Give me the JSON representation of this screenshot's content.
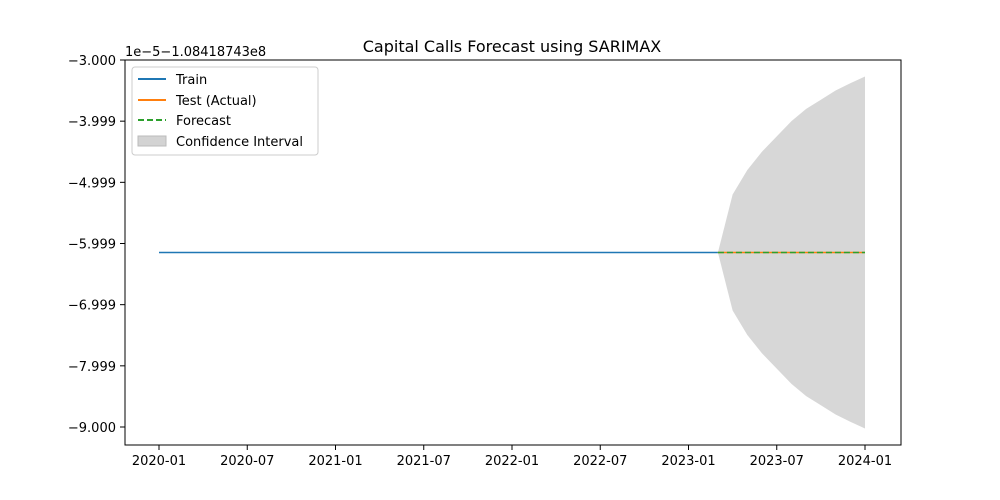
{
  "chart_data": {
    "type": "line",
    "title": "Capital Calls Forecast using SARIMAX",
    "offset_label": "1e−5−1.08418743e8",
    "xlabel": "",
    "ylabel": "",
    "x_ticks": [
      "2020-01",
      "2020-07",
      "2021-01",
      "2021-07",
      "2022-01",
      "2022-07",
      "2023-01",
      "2023-07",
      "2024-01"
    ],
    "y_ticks": [
      "−3.000",
      "−3.999",
      "−4.999",
      "−5.999",
      "−6.999",
      "−7.999",
      "−9.000"
    ],
    "ylim": [
      -9.3,
      -3.0
    ],
    "grid": false,
    "legend_position": "top-left",
    "series": [
      {
        "name": "Train",
        "color": "#1f77b4",
        "style": "solid",
        "x": [
          "2020-01",
          "2023-03"
        ],
        "y": [
          -6.15,
          -6.15
        ]
      },
      {
        "name": "Test (Actual)",
        "color": "#ff7f0e",
        "style": "solid",
        "x": [
          "2023-03",
          "2024-01"
        ],
        "y": [
          -6.15,
          -6.15
        ]
      },
      {
        "name": "Forecast",
        "color": "#2ca02c",
        "style": "dashed",
        "x": [
          "2023-03",
          "2024-01"
        ],
        "y": [
          -6.15,
          -6.15
        ]
      }
    ],
    "confidence_interval": {
      "name": "Confidence Interval",
      "color": "#d3d3d3",
      "x": [
        "2023-03",
        "2023-04",
        "2023-05",
        "2023-06",
        "2023-07",
        "2023-08",
        "2023-09",
        "2023-10",
        "2023-11",
        "2023-12",
        "2024-01"
      ],
      "upper": [
        -6.15,
        -5.2,
        -4.8,
        -4.5,
        -4.25,
        -4.0,
        -3.8,
        -3.65,
        -3.5,
        -3.38,
        -3.27
      ],
      "lower": [
        -6.15,
        -7.1,
        -7.5,
        -7.8,
        -8.05,
        -8.3,
        -8.5,
        -8.65,
        -8.8,
        -8.92,
        -9.03
      ]
    }
  }
}
